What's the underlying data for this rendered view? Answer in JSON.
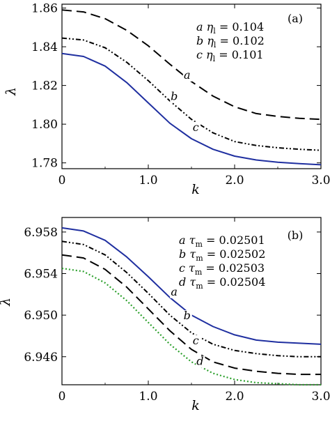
{
  "chart_data": [
    {
      "type": "line",
      "panel_label": "(a)",
      "xlabel": "k",
      "ylabel": "λ",
      "xlim": [
        0,
        3.0
      ],
      "ylim": [
        1.777,
        1.862
      ],
      "xticks": [
        0,
        1.0,
        2.0,
        3.0
      ],
      "xtick_labels": [
        "0",
        "1.0",
        "2.0",
        "3.0"
      ],
      "yticks": [
        1.78,
        1.8,
        1.82,
        1.84,
        1.86
      ],
      "ytick_labels": [
        "1.78",
        "1.80",
        "1.82",
        "1.84",
        "1.86"
      ],
      "legend": [
        {
          "letter": "a",
          "symbol": "η",
          "sub": "l",
          "value": "= 0.104"
        },
        {
          "letter": "b",
          "symbol": "η",
          "sub": "l",
          "value": "= 0.102"
        },
        {
          "letter": "c",
          "symbol": "η",
          "sub": "l",
          "value": "= 0.101"
        }
      ],
      "series": [
        {
          "name": "a",
          "style": "dashed",
          "color": "#000000",
          "x": [
            0,
            0.25,
            0.5,
            0.75,
            1.0,
            1.25,
            1.5,
            1.75,
            2.0,
            2.25,
            2.5,
            2.75,
            3.0
          ],
          "y": [
            1.859,
            1.858,
            1.8545,
            1.8485,
            1.8405,
            1.831,
            1.822,
            1.8145,
            1.809,
            1.8055,
            1.804,
            1.803,
            1.8025
          ],
          "label_at": [
            1.45,
            1.8235
          ]
        },
        {
          "name": "b",
          "style": "dashdot",
          "color": "#000000",
          "x": [
            0,
            0.25,
            0.5,
            0.75,
            1.0,
            1.25,
            1.5,
            1.75,
            2.0,
            2.25,
            2.5,
            2.75,
            3.0
          ],
          "y": [
            1.8445,
            1.8435,
            1.8395,
            1.832,
            1.8225,
            1.812,
            1.8025,
            1.7955,
            1.791,
            1.789,
            1.7878,
            1.787,
            1.7865
          ],
          "label_at": [
            1.3,
            1.8125
          ]
        },
        {
          "name": "c",
          "style": "solid",
          "color": "#1f2fa0",
          "x": [
            0,
            0.25,
            0.5,
            0.75,
            1.0,
            1.25,
            1.5,
            1.75,
            2.0,
            2.25,
            2.5,
            2.75,
            3.0
          ],
          "y": [
            1.8365,
            1.835,
            1.83,
            1.8215,
            1.811,
            1.8005,
            1.7925,
            1.787,
            1.7835,
            1.7815,
            1.7803,
            1.7796,
            1.779
          ],
          "label_at": [
            1.55,
            1.7965
          ]
        }
      ]
    },
    {
      "type": "line",
      "panel_label": "(b)",
      "xlabel": "k",
      "ylabel": "λ",
      "xlim": [
        0,
        3.0
      ],
      "ylim": [
        6.9433,
        6.9594
      ],
      "xticks": [
        0,
        1.0,
        2.0,
        3.0
      ],
      "xtick_labels": [
        "0",
        "1.0",
        "2.0",
        "3.0"
      ],
      "yticks": [
        6.946,
        6.95,
        6.954,
        6.958
      ],
      "ytick_labels": [
        "6.946",
        "6.950",
        "6.954",
        "6.958"
      ],
      "legend": [
        {
          "letter": "a",
          "symbol": "τ",
          "sub": "m",
          "value": "= 0.02501"
        },
        {
          "letter": "b",
          "symbol": "τ",
          "sub": "m",
          "value": "= 0.02502"
        },
        {
          "letter": "c",
          "symbol": "τ",
          "sub": "m",
          "value": "= 0.02503"
        },
        {
          "letter": "d",
          "symbol": "τ",
          "sub": "m",
          "value": "= 0.02504"
        }
      ],
      "series": [
        {
          "name": "a",
          "style": "solid",
          "color": "#1f2fa0",
          "x": [
            0,
            0.25,
            0.5,
            0.75,
            1.0,
            1.25,
            1.5,
            1.75,
            2.0,
            2.25,
            2.5,
            2.75,
            3.0
          ],
          "y": [
            6.9584,
            6.9581,
            6.9572,
            6.9556,
            6.9537,
            6.9517,
            6.95,
            6.9489,
            6.9481,
            6.9476,
            6.9474,
            6.9473,
            6.9472
          ],
          "label_at": [
            1.3,
            6.9519
          ]
        },
        {
          "name": "b",
          "style": "dashdot",
          "color": "#000000",
          "x": [
            0,
            0.25,
            0.5,
            0.75,
            1.0,
            1.25,
            1.5,
            1.75,
            2.0,
            2.25,
            2.5,
            2.75,
            3.0
          ],
          "y": [
            6.9571,
            6.9568,
            6.9558,
            6.9541,
            6.9521,
            6.95,
            6.9483,
            6.9472,
            6.9466,
            6.9463,
            6.9461,
            6.946,
            6.946
          ],
          "label_at": [
            1.45,
            6.9496
          ]
        },
        {
          "name": "c",
          "style": "dashed",
          "color": "#000000",
          "x": [
            0,
            0.25,
            0.5,
            0.75,
            1.0,
            1.25,
            1.5,
            1.75,
            2.0,
            2.25,
            2.5,
            2.75,
            3.0
          ],
          "y": [
            6.9558,
            6.9555,
            6.9544,
            6.9527,
            6.9506,
            6.9485,
            6.9467,
            6.9455,
            6.9449,
            6.9446,
            6.9444,
            6.9443,
            6.9443
          ],
          "label_at": [
            1.55,
            6.9472
          ]
        },
        {
          "name": "d",
          "style": "dotted",
          "color": "#2ca02c",
          "x": [
            0,
            0.25,
            0.5,
            0.75,
            1.0,
            1.25,
            1.5,
            1.75,
            2.0,
            2.25,
            2.5,
            2.75,
            3.0
          ],
          "y": [
            6.9545,
            6.9542,
            6.9531,
            6.9514,
            6.9493,
            6.9472,
            6.9455,
            6.9444,
            6.9438,
            6.9435,
            6.9434,
            6.9433,
            6.9433
          ],
          "label_at": [
            1.6,
            6.9452
          ]
        }
      ]
    }
  ]
}
